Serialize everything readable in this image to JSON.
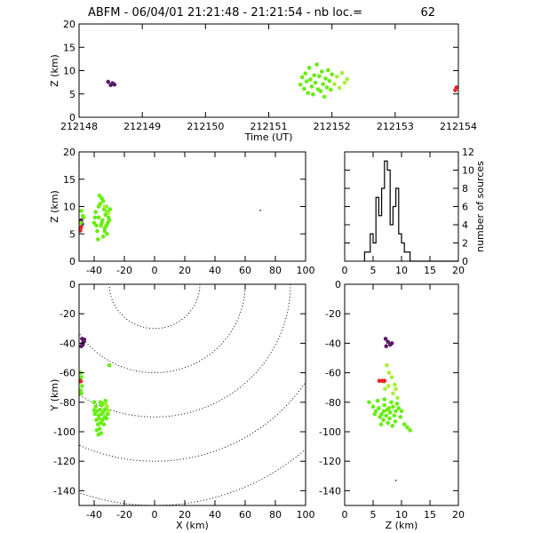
{
  "title": {
    "text": "ABFM - 06/04/01 21:21:48 - 21:21:54 - nb loc.=",
    "count": "62"
  },
  "colors": {
    "early": "#5a1a6a",
    "main": "#66ee11",
    "late": "#aaee33",
    "last": "#ee2222"
  },
  "chart_data": [
    {
      "id": "time-height",
      "type": "scatter",
      "xlabel": "Time (UT)",
      "ylabel": "Z (km)",
      "xlim": [
        212148,
        212154
      ],
      "ylim": [
        0,
        20
      ],
      "xticks": [
        212148,
        212149,
        212150,
        212151,
        212152,
        212153,
        212154
      ],
      "yticks": [
        0,
        5,
        10,
        15,
        20
      ],
      "series": [
        {
          "color": "early",
          "points": [
            [
              212148.46,
              7.6
            ],
            [
              212148.5,
              6.9
            ],
            [
              212148.53,
              7.3
            ],
            [
              212148.56,
              7.0
            ]
          ]
        },
        {
          "color": "main",
          "points": [
            [
              212151.5,
              7.0
            ],
            [
              212151.53,
              8.6
            ],
            [
              212151.56,
              6.1
            ],
            [
              212151.58,
              9.4
            ],
            [
              212151.6,
              7.7
            ],
            [
              212151.62,
              5.2
            ],
            [
              212151.64,
              10.6
            ],
            [
              212151.66,
              8.1
            ],
            [
              212151.68,
              6.6
            ],
            [
              212151.7,
              4.9
            ],
            [
              212151.72,
              9.0
            ],
            [
              212151.74,
              7.4
            ],
            [
              212151.76,
              11.3
            ],
            [
              212151.78,
              6.0
            ],
            [
              212151.8,
              8.8
            ],
            [
              212151.82,
              5.6
            ],
            [
              212151.84,
              9.8
            ],
            [
              212151.86,
              7.1
            ],
            [
              212151.88,
              4.4
            ],
            [
              212151.9,
              8.3
            ],
            [
              212151.92,
              6.4
            ],
            [
              212151.94,
              10.1
            ],
            [
              212151.96,
              7.8
            ],
            [
              212151.98,
              5.9
            ],
            [
              212152.0,
              9.2
            ]
          ]
        },
        {
          "color": "late",
          "points": [
            [
              212152.04,
              7.1
            ],
            [
              212152.08,
              8.7
            ],
            [
              212152.12,
              6.3
            ],
            [
              212152.16,
              9.5
            ],
            [
              212152.2,
              7.4
            ],
            [
              212152.24,
              8.2
            ]
          ]
        },
        {
          "color": "last",
          "points": [
            [
              212153.95,
              5.8
            ],
            [
              212153.97,
              6.4
            ]
          ]
        }
      ]
    },
    {
      "id": "x-height",
      "type": "scatter",
      "ylabel": "Z (km)",
      "xlim": [
        -50,
        100
      ],
      "ylim": [
        0,
        20
      ],
      "xticks": [
        -40,
        -20,
        0,
        20,
        40,
        60,
        80,
        100
      ],
      "yticks": [
        0,
        5,
        10,
        15,
        20
      ],
      "series": [
        {
          "color": "early",
          "points": [
            [
              -48.5,
              7.5
            ],
            [
              -48.0,
              6.8
            ]
          ]
        },
        {
          "color": "main",
          "points": [
            [
              -48.5,
              9.2
            ],
            [
              -47.5,
              8.3
            ],
            [
              -48.8,
              7.0
            ],
            [
              -47.0,
              8.0
            ],
            [
              -40,
              7.0
            ],
            [
              -39,
              9.0
            ],
            [
              -38,
              5.5
            ],
            [
              -37,
              8.0
            ],
            [
              -36,
              10.5
            ],
            [
              -35.5,
              6.5
            ],
            [
              -35,
              11.5
            ],
            [
              -34.5,
              7.5
            ],
            [
              -34,
              4.5
            ],
            [
              -33.5,
              9.5
            ],
            [
              -33,
              6.0
            ],
            [
              -32.5,
              8.5
            ],
            [
              -32,
              10.0
            ],
            [
              -31.5,
              5.0
            ],
            [
              -31,
              7.0
            ],
            [
              -30.5,
              8.0
            ],
            [
              -36.5,
              12.0
            ],
            [
              -38.5,
              6.5
            ],
            [
              -39.5,
              8.0
            ],
            [
              -37.5,
              4.0
            ],
            [
              -34,
              11.0
            ],
            [
              -33,
              5.5
            ],
            [
              -31.5,
              9.0
            ],
            [
              -35,
              7.0
            ],
            [
              -37,
              10.0
            ],
            [
              -32,
              6.5
            ],
            [
              -30,
              7.5
            ],
            [
              -29.5,
              9.5
            ]
          ]
        },
        {
          "color": "late",
          "points": [
            [
              -33,
              10.0
            ],
            [
              -30.5,
              8.8
            ]
          ]
        },
        {
          "color": "last",
          "points": [
            [
              -49.2,
              5.6
            ],
            [
              -48.6,
              6.2
            ]
          ]
        },
        {
          "color": "outlier",
          "points": [
            [
              70,
              9.3
            ]
          ]
        }
      ]
    },
    {
      "id": "height-histogram",
      "type": "histogram",
      "ylabel": "number of sources",
      "xlim": [
        0,
        20
      ],
      "ylim": [
        0,
        12
      ],
      "xticks": [
        0,
        5,
        10,
        15,
        20
      ],
      "yticks": [
        0,
        2,
        4,
        6,
        8,
        10,
        12
      ],
      "bin_width": 0.5,
      "bins_start": 3.5,
      "counts": [
        1,
        1,
        3,
        2,
        7,
        5,
        8,
        11,
        10,
        4,
        6,
        8,
        3,
        2,
        1,
        1,
        0,
        0
      ]
    },
    {
      "id": "plan-view",
      "type": "scatter",
      "xlabel": "X (km)",
      "ylabel": "Y (km)",
      "xlim": [
        -50,
        100
      ],
      "ylim": [
        -150,
        0
      ],
      "xticks": [
        -40,
        -20,
        0,
        20,
        40,
        60,
        80,
        100
      ],
      "yticks": [
        0,
        -20,
        -40,
        -60,
        -80,
        -100,
        -120,
        -140
      ],
      "range_rings": {
        "center": [
          0,
          0
        ],
        "radii": [
          30,
          60,
          90,
          120,
          150
        ]
      },
      "series": [
        {
          "color": "early",
          "points": [
            [
              -48,
              -37
            ],
            [
              -47,
              -39
            ],
            [
              -47.5,
              -41
            ],
            [
              -48.5,
              -42
            ],
            [
              -46.5,
              -37.5
            ],
            [
              -47.8,
              -40.2
            ]
          ]
        },
        {
          "color": "main",
          "points": [
            [
              -49,
              -60
            ],
            [
              -48.5,
              -63
            ],
            [
              -49.5,
              -66
            ],
            [
              -48,
              -69
            ],
            [
              -49,
              -72
            ],
            [
              -48.5,
              -74
            ],
            [
              -30,
              -55
            ],
            [
              -40,
              -80
            ],
            [
              -39,
              -83
            ],
            [
              -38,
              -86
            ],
            [
              -37,
              -89
            ],
            [
              -36,
              -85
            ],
            [
              -35,
              -82
            ],
            [
              -34,
              -87
            ],
            [
              -33,
              -90
            ],
            [
              -32,
              -84
            ],
            [
              -31,
              -88
            ],
            [
              -38.5,
              -92
            ],
            [
              -37.5,
              -95
            ],
            [
              -36.5,
              -98
            ],
            [
              -35.5,
              -101
            ],
            [
              -36,
              -80
            ],
            [
              -34.5,
              -92
            ],
            [
              -33.5,
              -95
            ],
            [
              -32.5,
              -79
            ],
            [
              -39.5,
              -88
            ],
            [
              -36.8,
              -91
            ],
            [
              -35.2,
              -88
            ],
            [
              -38.2,
              -99
            ],
            [
              -37.2,
              -102
            ],
            [
              -34,
              -81
            ],
            [
              -31.8,
              -91
            ],
            [
              -33,
              -85
            ],
            [
              -40,
              -85.5
            ],
            [
              -35.6,
              -94
            ]
          ]
        },
        {
          "color": "late",
          "points": [
            [
              -31.5,
              -83
            ],
            [
              -30.5,
              -86
            ],
            [
              -32.2,
              -81
            ]
          ]
        },
        {
          "color": "last",
          "points": [
            [
              -49.5,
              -65.5
            ],
            [
              -48.8,
              -65.8
            ]
          ]
        }
      ]
    },
    {
      "id": "height-y",
      "type": "scatter",
      "xlabel": "Z (km)",
      "xlim": [
        0,
        20
      ],
      "ylim": [
        -150,
        0
      ],
      "xticks": [
        0,
        5,
        10,
        15,
        20
      ],
      "yticks": [
        0,
        -20,
        -40,
        -60,
        -80,
        -100,
        -120,
        -140
      ],
      "series": [
        {
          "color": "early",
          "points": [
            [
              7.2,
              -37
            ],
            [
              7.6,
              -39
            ],
            [
              8.0,
              -41
            ],
            [
              7.3,
              -42
            ],
            [
              8.3,
              -40
            ]
          ]
        },
        {
          "color": "main",
          "points": [
            [
              4.3,
              -80
            ],
            [
              5.0,
              -83
            ],
            [
              5.5,
              -86
            ],
            [
              6.0,
              -84
            ],
            [
              6.5,
              -88
            ],
            [
              7.0,
              -82
            ],
            [
              7.5,
              -85
            ],
            [
              8.0,
              -87
            ],
            [
              8.5,
              -83
            ],
            [
              9.0,
              -86
            ],
            [
              6.2,
              -90
            ],
            [
              6.8,
              -92
            ],
            [
              7.3,
              -89
            ],
            [
              7.9,
              -91
            ],
            [
              8.7,
              -89
            ],
            [
              9.5,
              -84
            ],
            [
              5.8,
              -79
            ],
            [
              7.0,
              -78
            ],
            [
              8.2,
              -80
            ],
            [
              9.2,
              -81
            ],
            [
              10.0,
              -86
            ],
            [
              6.4,
              -95
            ],
            [
              7.6,
              -94
            ],
            [
              8.4,
              -96
            ],
            [
              5.3,
              -88
            ],
            [
              6.9,
              -86
            ],
            [
              7.8,
              -84
            ],
            [
              8.9,
              -93
            ],
            [
              9.8,
              -90
            ],
            [
              10.5,
              -95
            ],
            [
              11.5,
              -99
            ],
            [
              11.0,
              -97
            ]
          ]
        },
        {
          "color": "late",
          "points": [
            [
              7.4,
              -55
            ],
            [
              7.8,
              -60
            ],
            [
              8.3,
              -63
            ],
            [
              8.8,
              -68
            ],
            [
              7.1,
              -71
            ],
            [
              8.5,
              -74
            ],
            [
              9.3,
              -77
            ],
            [
              6.9,
              -66
            ],
            [
              7.7,
              -69
            ],
            [
              9.0,
              -71
            ]
          ]
        },
        {
          "color": "last",
          "points": [
            [
              6.1,
              -65.5
            ],
            [
              6.6,
              -65.5
            ],
            [
              7.0,
              -65.5
            ]
          ]
        },
        {
          "color": "outlier",
          "points": [
            [
              9.0,
              -133
            ]
          ]
        }
      ]
    }
  ]
}
